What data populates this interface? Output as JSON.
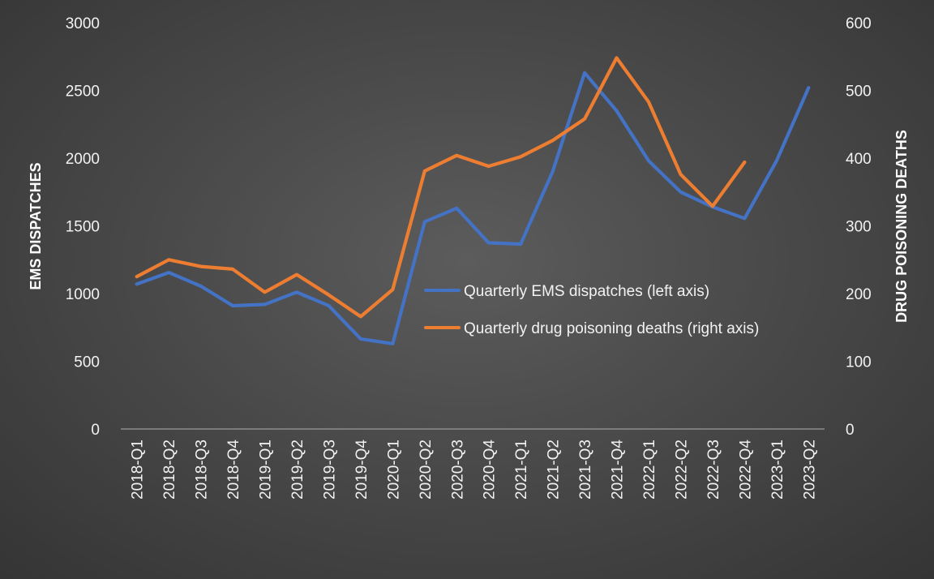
{
  "chart_data": {
    "type": "line",
    "categories": [
      "2018-Q1",
      "2018-Q2",
      "2018-Q3",
      "2018-Q4",
      "2019-Q1",
      "2019-Q2",
      "2019-Q3",
      "2019-Q4",
      "2020-Q1",
      "2020-Q2",
      "2020-Q3",
      "2020-Q4",
      "2021-Q1",
      "2021-Q2",
      "2021-Q3",
      "2021-Q4",
      "2022-Q1",
      "2022-Q2",
      "2022-Q3",
      "2022-Q4",
      "2023-Q1",
      "2023-Q2"
    ],
    "series": [
      {
        "name": "Quarterly EMS dispatches (left axis)",
        "axis": "left",
        "color": "#4472C4",
        "values": [
          1070,
          1155,
          1055,
          910,
          920,
          1010,
          910,
          665,
          630,
          1530,
          1630,
          1375,
          1365,
          1900,
          2630,
          2350,
          1980,
          1750,
          1640,
          1555,
          1980,
          2520
        ]
      },
      {
        "name": "Quarterly drug poisoning deaths (right axis)",
        "axis": "right",
        "color": "#ED7D31",
        "values": [
          225,
          250,
          240,
          236,
          202,
          228,
          198,
          166,
          206,
          381,
          404,
          388,
          402,
          426,
          458,
          548,
          483,
          376,
          329,
          394,
          null,
          null
        ]
      }
    ],
    "ylabel": "EMS DISPATCHES",
    "ylabel_right": "DRUG POISONING DEATHS",
    "ylim": [
      0,
      3000
    ],
    "ylim_right": [
      0,
      600
    ],
    "yticks": [
      0,
      500,
      1000,
      1500,
      2000,
      2500,
      3000
    ],
    "yticks_right": [
      0,
      100,
      200,
      300,
      400,
      500,
      600
    ],
    "grid": false,
    "legend_position": "center-right"
  }
}
